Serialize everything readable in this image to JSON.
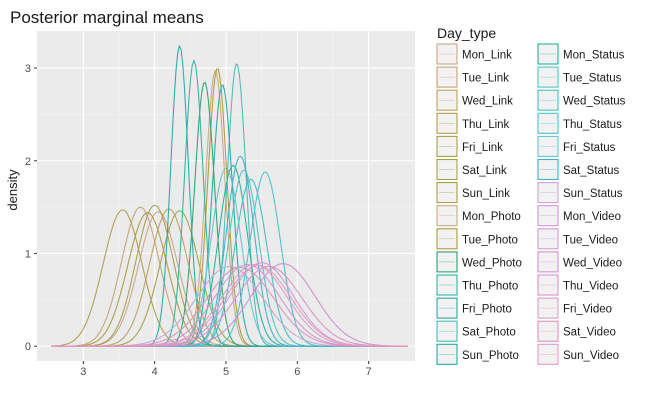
{
  "chart_data": {
    "type": "line",
    "title": "Posterior marginal means",
    "xlabel": "",
    "ylabel": "density",
    "xlim": [
      2.35,
      7.65
    ],
    "ylim": [
      -0.16,
      3.4
    ],
    "x_ticks": [
      3,
      4,
      5,
      6,
      7
    ],
    "y_ticks": [
      0,
      1,
      2,
      3
    ],
    "grid": true,
    "legend": {
      "title": "Day_type",
      "placement": "right",
      "columns": 2
    },
    "series": [
      {
        "name": "Mon_Link",
        "color": "#c9a48d",
        "mean": 4.05,
        "peak": 1.45
      },
      {
        "name": "Tue_Link",
        "color": "#c7a27a",
        "mean": 3.8,
        "peak": 1.5
      },
      {
        "name": "Wed_Link",
        "color": "#bda15e",
        "mean": 4.2,
        "peak": 1.48
      },
      {
        "name": "Thu_Link",
        "color": "#b09d50",
        "mean": 3.55,
        "peak": 1.47
      },
      {
        "name": "Fri_Link",
        "color": "#a89d4e",
        "mean": 4.0,
        "peak": 1.52
      },
      {
        "name": "Sat_Link",
        "color": "#a3a048",
        "mean": 4.35,
        "peak": 1.46
      },
      {
        "name": "Sun_Link",
        "color": "#a89e47",
        "mean": 3.9,
        "peak": 1.44
      },
      {
        "name": "Mon_Photo",
        "color": "#c5ab85",
        "mean": 4.85,
        "peak": 2.97
      },
      {
        "name": "Tue_Photo",
        "color": "#aa9a3c",
        "mean": 4.88,
        "peak": 3.0
      },
      {
        "name": "Wed_Photo",
        "color": "#2f9f6f",
        "mean": 4.7,
        "peak": 2.85
      },
      {
        "name": "Thu_Photo",
        "color": "#32b39d",
        "mean": 4.55,
        "peak": 3.08
      },
      {
        "name": "Fri_Photo",
        "color": "#2ba6a6",
        "mean": 4.35,
        "peak": 3.24
      },
      {
        "name": "Sat_Photo",
        "color": "#4eb8b4",
        "mean": 5.15,
        "peak": 3.05
      },
      {
        "name": "Sun_Photo",
        "color": "#25a9a2",
        "mean": 4.95,
        "peak": 2.82
      },
      {
        "name": "Mon_Status",
        "color": "#27b19a",
        "mean": 5.1,
        "peak": 1.95
      },
      {
        "name": "Tue_Status",
        "color": "#50c4c0",
        "mean": 5.25,
        "peak": 1.9
      },
      {
        "name": "Wed_Status",
        "color": "#3fbfc4",
        "mean": 5.35,
        "peak": 1.8
      },
      {
        "name": "Thu_Status",
        "color": "#49c2ca",
        "mean": 5.55,
        "peak": 1.88
      },
      {
        "name": "Fri_Status",
        "color": "#66c3d2",
        "mean": 5.0,
        "peak": 1.92
      },
      {
        "name": "Sat_Status",
        "color": "#3eb1c8",
        "mean": 5.2,
        "peak": 2.05
      },
      {
        "name": "Sun_Status",
        "color": "#c9a5d3",
        "mean": 5.05,
        "peak": 0.86
      },
      {
        "name": "Mon_Video",
        "color": "#cc97d6",
        "mean": 5.3,
        "peak": 0.88
      },
      {
        "name": "Tue_Video",
        "color": "#d09ad5",
        "mean": 5.5,
        "peak": 0.9
      },
      {
        "name": "Wed_Video",
        "color": "#cf8fcf",
        "mean": 5.8,
        "peak": 0.89
      },
      {
        "name": "Thu_Video",
        "color": "#d892c7",
        "mean": 5.6,
        "peak": 0.86
      },
      {
        "name": "Fri_Video",
        "color": "#d99ec7",
        "mean": 5.4,
        "peak": 0.88
      },
      {
        "name": "Sat_Video",
        "color": "#e08fb8",
        "mean": 5.2,
        "peak": 0.85
      },
      {
        "name": "Sun_Video",
        "color": "#e59ac3",
        "mean": 5.45,
        "peak": 0.87
      }
    ]
  }
}
